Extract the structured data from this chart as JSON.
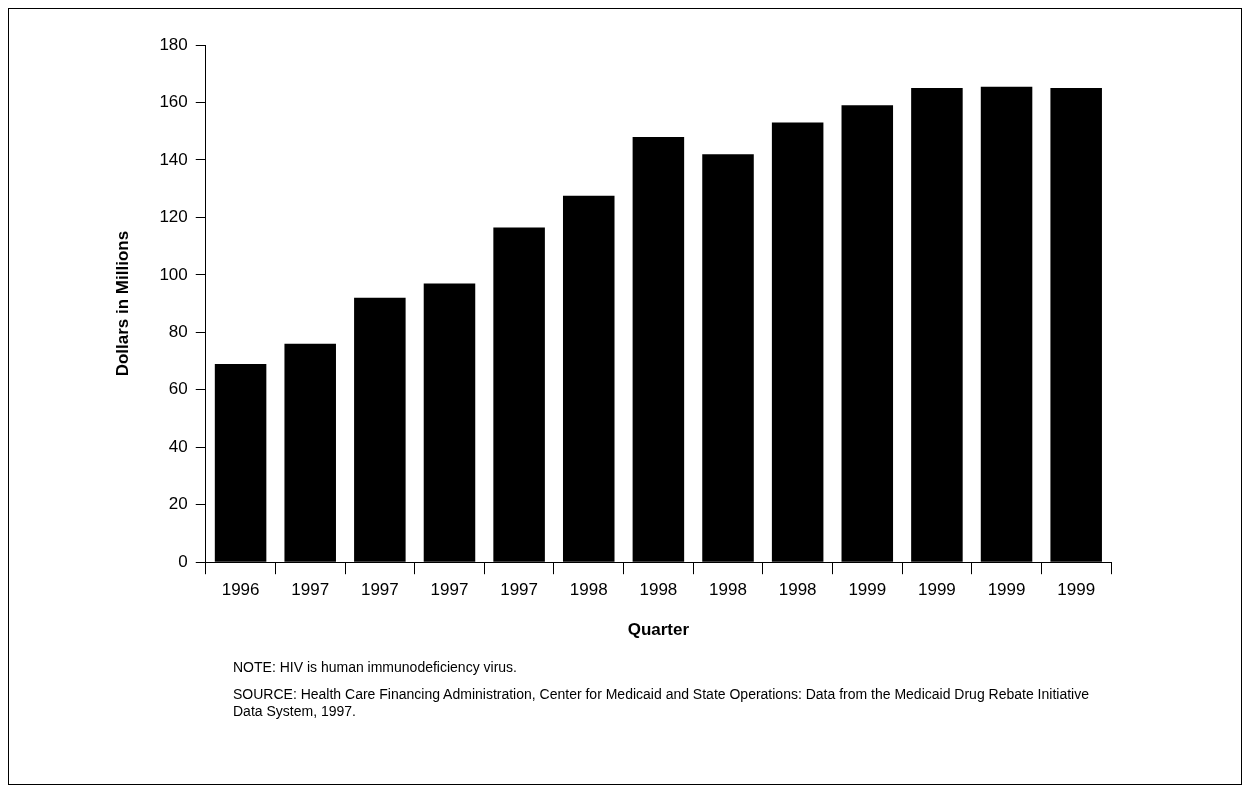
{
  "chart_data": {
    "type": "bar",
    "categories": [
      "1996",
      "1997",
      "1997",
      "1997",
      "1997",
      "1998",
      "1998",
      "1998",
      "1998",
      "1999",
      "1999",
      "1999",
      "1999"
    ],
    "values": [
      69,
      76,
      92,
      97,
      116.5,
      127.5,
      148,
      142,
      153,
      159,
      165,
      165.5,
      165
    ],
    "color": "#000000",
    "xlabel": "Quarter",
    "ylabel": "Dollars in Millions",
    "ylim": [
      0,
      180
    ],
    "yticks": [
      0,
      20,
      40,
      60,
      80,
      100,
      120,
      140,
      160,
      180
    ],
    "grid": false,
    "legend": false,
    "annotations": [
      "NOTE:  HIV is human immunodeficiency virus.",
      "SOURCE:  Health Care Financing Administration, Center for Medicaid and State Operations: Data from the Medicaid Drug Rebate Initiative Data System, 1997."
    ]
  }
}
